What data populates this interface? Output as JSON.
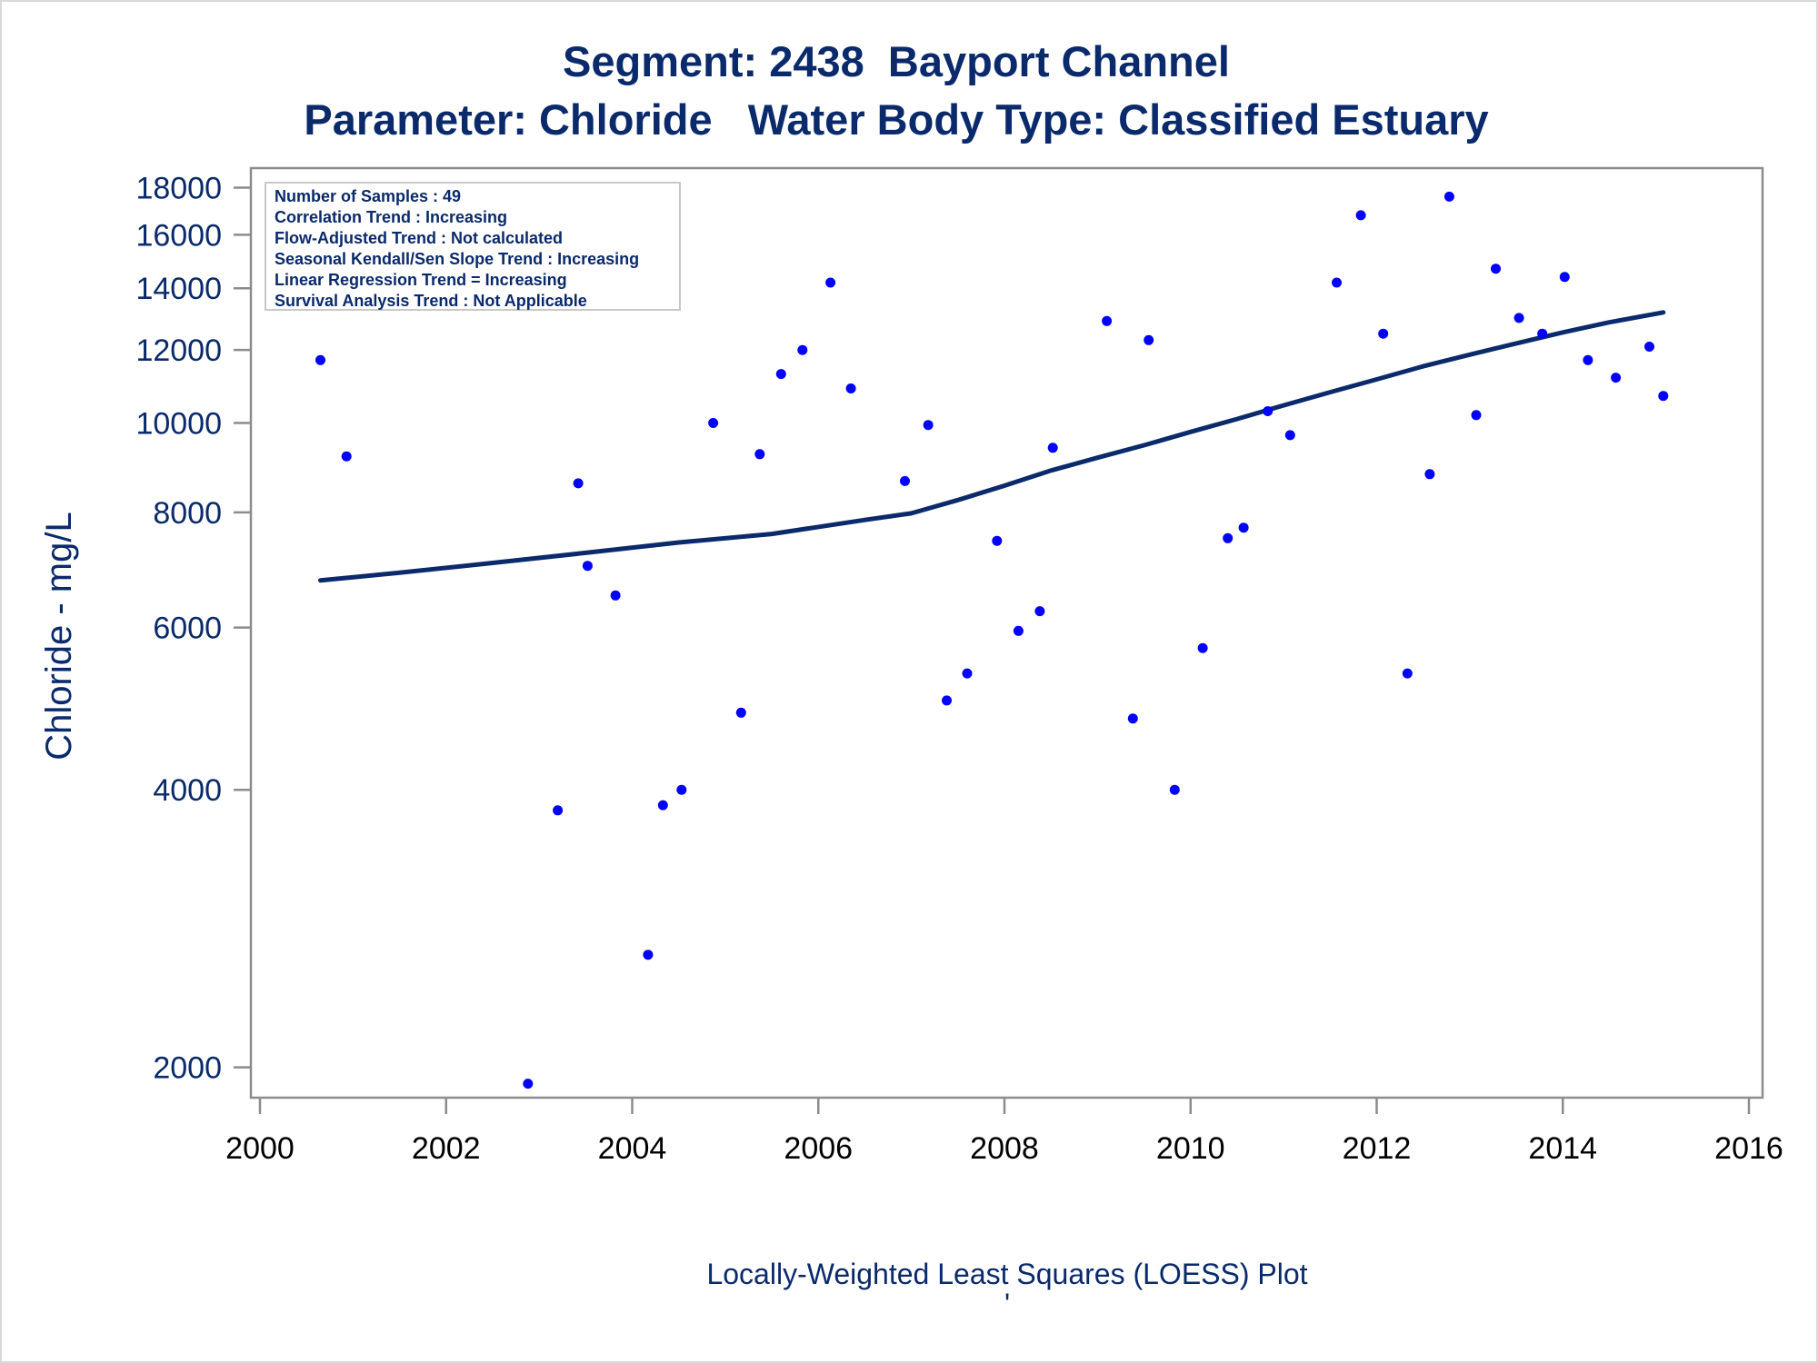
{
  "chart_data": {
    "type": "scatter",
    "title": "Segment: 2438  Bayport Channel",
    "subtitle": "Parameter: Chloride   Water Body Type: Classified Estuary",
    "xlabel": "",
    "ylabel": "Chloride - mg/L",
    "footnote": "Locally-Weighted Least Squares (LOESS) Plot",
    "footnote_mark": "'",
    "y_scale": "log",
    "xlim": [
      2000,
      2016
    ],
    "ylim": [
      1850,
      18900
    ],
    "x_ticks": [
      2000,
      2002,
      2004,
      2006,
      2008,
      2010,
      2012,
      2014,
      2016
    ],
    "y_ticks": [
      2000,
      4000,
      6000,
      8000,
      10000,
      12000,
      14000,
      16000,
      18000
    ],
    "grid": false,
    "colors": {
      "points": "#0000ff",
      "trend": "#0a2a6b",
      "text": "#0a2a6b",
      "axis": "#8c8c8c"
    },
    "info_box": [
      "Number of Samples : 49",
      "Correlation Trend : Increasing",
      "Flow-Adjusted Trend : Not calculated",
      "Seasonal Kendall/Sen Slope Trend : Increasing",
      "Linear Regression Trend = Increasing",
      "Survival Analysis Trend : Not Applicable"
    ],
    "info_box_position": "top-left",
    "points": [
      {
        "x": 2000.65,
        "y": 11700
      },
      {
        "x": 2000.93,
        "y": 9200
      },
      {
        "x": 2002.88,
        "y": 1920
      },
      {
        "x": 2003.2,
        "y": 3800
      },
      {
        "x": 2003.42,
        "y": 8600
      },
      {
        "x": 2003.52,
        "y": 7000
      },
      {
        "x": 2003.82,
        "y": 6500
      },
      {
        "x": 2004.17,
        "y": 2650
      },
      {
        "x": 2004.33,
        "y": 3850
      },
      {
        "x": 2004.53,
        "y": 4000
      },
      {
        "x": 2004.87,
        "y": 10000
      },
      {
        "x": 2005.17,
        "y": 4850
      },
      {
        "x": 2005.37,
        "y": 9250
      },
      {
        "x": 2005.6,
        "y": 11300
      },
      {
        "x": 2005.83,
        "y": 12000
      },
      {
        "x": 2006.13,
        "y": 14200
      },
      {
        "x": 2006.35,
        "y": 10900
      },
      {
        "x": 2006.93,
        "y": 8650
      },
      {
        "x": 2007.18,
        "y": 9950
      },
      {
        "x": 2007.38,
        "y": 5000
      },
      {
        "x": 2007.6,
        "y": 5350
      },
      {
        "x": 2007.92,
        "y": 7450
      },
      {
        "x": 2008.15,
        "y": 5950
      },
      {
        "x": 2008.38,
        "y": 6250
      },
      {
        "x": 2008.52,
        "y": 9400
      },
      {
        "x": 2009.1,
        "y": 12900
      },
      {
        "x": 2009.38,
        "y": 4780
      },
      {
        "x": 2009.55,
        "y": 12300
      },
      {
        "x": 2009.83,
        "y": 4000
      },
      {
        "x": 2010.13,
        "y": 5700
      },
      {
        "x": 2010.4,
        "y": 7500
      },
      {
        "x": 2010.57,
        "y": 7700
      },
      {
        "x": 2010.83,
        "y": 10300
      },
      {
        "x": 2011.07,
        "y": 9700
      },
      {
        "x": 2011.57,
        "y": 14200
      },
      {
        "x": 2011.83,
        "y": 16800
      },
      {
        "x": 2012.07,
        "y": 12500
      },
      {
        "x": 2012.33,
        "y": 5350
      },
      {
        "x": 2012.57,
        "y": 8800
      },
      {
        "x": 2012.78,
        "y": 17600
      },
      {
        "x": 2013.07,
        "y": 10200
      },
      {
        "x": 2013.28,
        "y": 14700
      },
      {
        "x": 2013.53,
        "y": 13000
      },
      {
        "x": 2013.78,
        "y": 12500
      },
      {
        "x": 2014.02,
        "y": 14400
      },
      {
        "x": 2014.27,
        "y": 11700
      },
      {
        "x": 2014.57,
        "y": 11200
      },
      {
        "x": 2014.93,
        "y": 12100
      },
      {
        "x": 2015.08,
        "y": 10700
      }
    ],
    "loess": [
      {
        "x": 2000.65,
        "y": 6750
      },
      {
        "x": 2001.5,
        "y": 6880
      },
      {
        "x": 2002.5,
        "y": 7050
      },
      {
        "x": 2003.5,
        "y": 7230
      },
      {
        "x": 2004.5,
        "y": 7420
      },
      {
        "x": 2005.5,
        "y": 7580
      },
      {
        "x": 2006.5,
        "y": 7850
      },
      {
        "x": 2007.0,
        "y": 7980
      },
      {
        "x": 2007.5,
        "y": 8250
      },
      {
        "x": 2008.0,
        "y": 8550
      },
      {
        "x": 2008.5,
        "y": 8880
      },
      {
        "x": 2009.0,
        "y": 9170
      },
      {
        "x": 2009.5,
        "y": 9460
      },
      {
        "x": 2010.0,
        "y": 9780
      },
      {
        "x": 2010.5,
        "y": 10100
      },
      {
        "x": 2011.0,
        "y": 10450
      },
      {
        "x": 2011.5,
        "y": 10800
      },
      {
        "x": 2012.0,
        "y": 11150
      },
      {
        "x": 2012.5,
        "y": 11520
      },
      {
        "x": 2013.0,
        "y": 11860
      },
      {
        "x": 2013.5,
        "y": 12200
      },
      {
        "x": 2014.0,
        "y": 12540
      },
      {
        "x": 2014.5,
        "y": 12860
      },
      {
        "x": 2015.08,
        "y": 13180
      }
    ]
  }
}
